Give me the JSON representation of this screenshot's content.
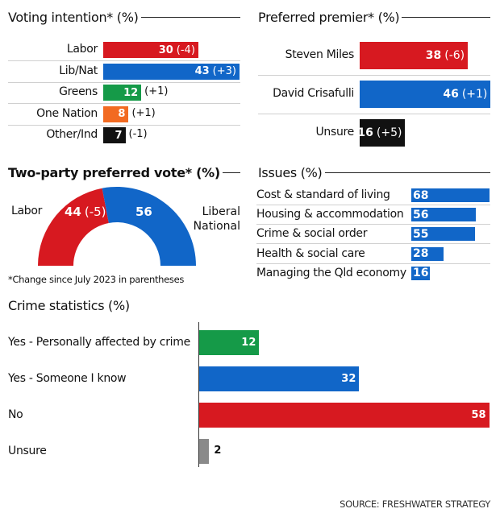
{
  "colors": {
    "labor": "#d71920",
    "lnp": "#1166c8",
    "greens": "#159a48",
    "onenation": "#f26a21",
    "other": "#111111",
    "unsure": "#111111",
    "grey": "#8a8a8a"
  },
  "chart_data": [
    {
      "type": "bar",
      "title": "Voting intention* (%)",
      "categories": [
        "Labor",
        "Lib/Nat",
        "Greens",
        "One Nation",
        "Other/Ind"
      ],
      "values": [
        30,
        43,
        12,
        8,
        7
      ],
      "changes": [
        "(-4)",
        "(+3)",
        "(+1)",
        "(+1)",
        "(-1)"
      ],
      "colors": [
        "#d71920",
        "#1166c8",
        "#159a48",
        "#f26a21",
        "#111111"
      ]
    },
    {
      "type": "bar",
      "title": "Preferred premier* (%)",
      "categories": [
        "Steven Miles",
        "David Crisafulli",
        "Unsure"
      ],
      "values": [
        38,
        46,
        16
      ],
      "changes": [
        "(-6)",
        "(+1)",
        "(+5)"
      ],
      "colors": [
        "#d71920",
        "#1166c8",
        "#111111"
      ]
    },
    {
      "type": "pie",
      "title": "Two-party preferred vote* (%)",
      "categories": [
        "Labor",
        "Liberal National"
      ],
      "values": [
        44,
        56
      ],
      "changes": [
        "(-5)",
        ""
      ],
      "colors": [
        "#d71920",
        "#1166c8"
      ],
      "label_right_lines": [
        "Liberal",
        "National"
      ]
    },
    {
      "type": "bar",
      "title": "Issues (%)",
      "categories": [
        "Cost & standard of living",
        "Housing & accommodation",
        "Crime & social order",
        "Health & social care",
        "Managing the Qld economy"
      ],
      "values": [
        68,
        56,
        55,
        28,
        16
      ]
    },
    {
      "type": "bar",
      "title": "Crime statistics (%)",
      "categories": [
        "Yes - Personally affected by crime",
        "Yes - Someone I know",
        "No",
        "Unsure"
      ],
      "values": [
        12,
        32,
        58,
        2
      ],
      "colors": [
        "#159a48",
        "#1166c8",
        "#d71920",
        "#8a8a8a"
      ]
    }
  ],
  "footnote": "*Change since July 2023 in parentheses",
  "source": "SOURCE: FRESHWATER STRATEGY"
}
